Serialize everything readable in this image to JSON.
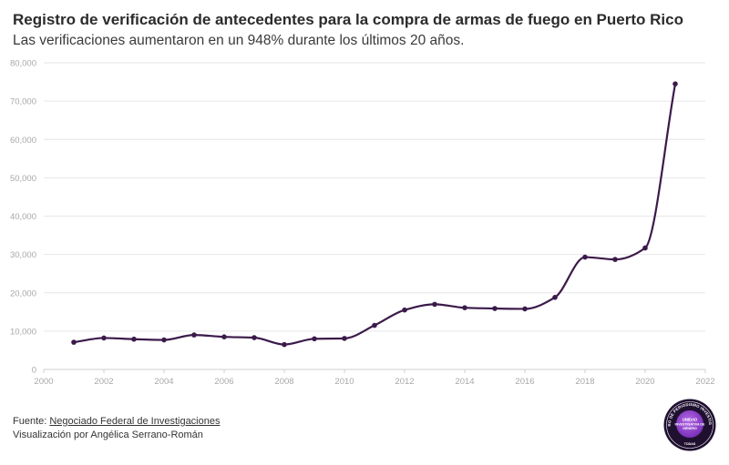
{
  "header": {
    "title": "Registro de verificación de antecedentes para la compra de armas de fuego en Puerto Rico",
    "subtitle": "Las verificaciones aumentaron en un 948% durante los últimos 20 años."
  },
  "footer": {
    "source_prefix": "Fuente: ",
    "source_link": "Negociado Federal de Investigaciones",
    "credit": "Visualización por Angélica Serrano-Román"
  },
  "badge": {
    "ring_text": "CENTRO DE PERIODISMO INVESTIGATIVO",
    "inner_line1": "UNIDAD",
    "inner_line2": "INVESTIGATIVA DE",
    "inner_line3": "GÉNERO",
    "bottom_text": "TODAS"
  },
  "colors": {
    "line": "#3b1a4a",
    "grid": "#e6e6e6",
    "tick": "#a8a8a8",
    "badge_dark": "#1f1030",
    "badge_purple": "#8b3fc7"
  },
  "chart_data": {
    "type": "line",
    "title": "Registro de verificación de antecedentes para la compra de armas de fuego en Puerto Rico",
    "subtitle": "Las verificaciones aumentaron en un 948% durante los últimos 20 años.",
    "xlabel": "",
    "ylabel": "",
    "xlim": [
      2000,
      2022
    ],
    "ylim": [
      0,
      80000
    ],
    "x_ticks": [
      2000,
      2002,
      2004,
      2006,
      2008,
      2010,
      2012,
      2014,
      2016,
      2018,
      2020,
      2022
    ],
    "y_ticks": [
      0,
      10000,
      20000,
      30000,
      40000,
      50000,
      60000,
      70000,
      80000
    ],
    "y_tick_labels": [
      "0",
      "10,000",
      "20,000",
      "30,000",
      "40,000",
      "50,000",
      "60,000",
      "70,000",
      "80,000"
    ],
    "grid": true,
    "series": [
      {
        "x": [
          2001,
          2002,
          2003,
          2004,
          2005,
          2006,
          2007,
          2008,
          2009,
          2010,
          2011,
          2012,
          2013,
          2014,
          2015,
          2016,
          2017,
          2018,
          2019,
          2020,
          2021
        ],
        "values": [
          7100,
          8200,
          7900,
          7700,
          9000,
          8500,
          8300,
          6500,
          8000,
          8100,
          11500,
          15500,
          17000,
          16100,
          15900,
          15800,
          18800,
          29300,
          28700,
          31700,
          74500
        ]
      }
    ]
  }
}
